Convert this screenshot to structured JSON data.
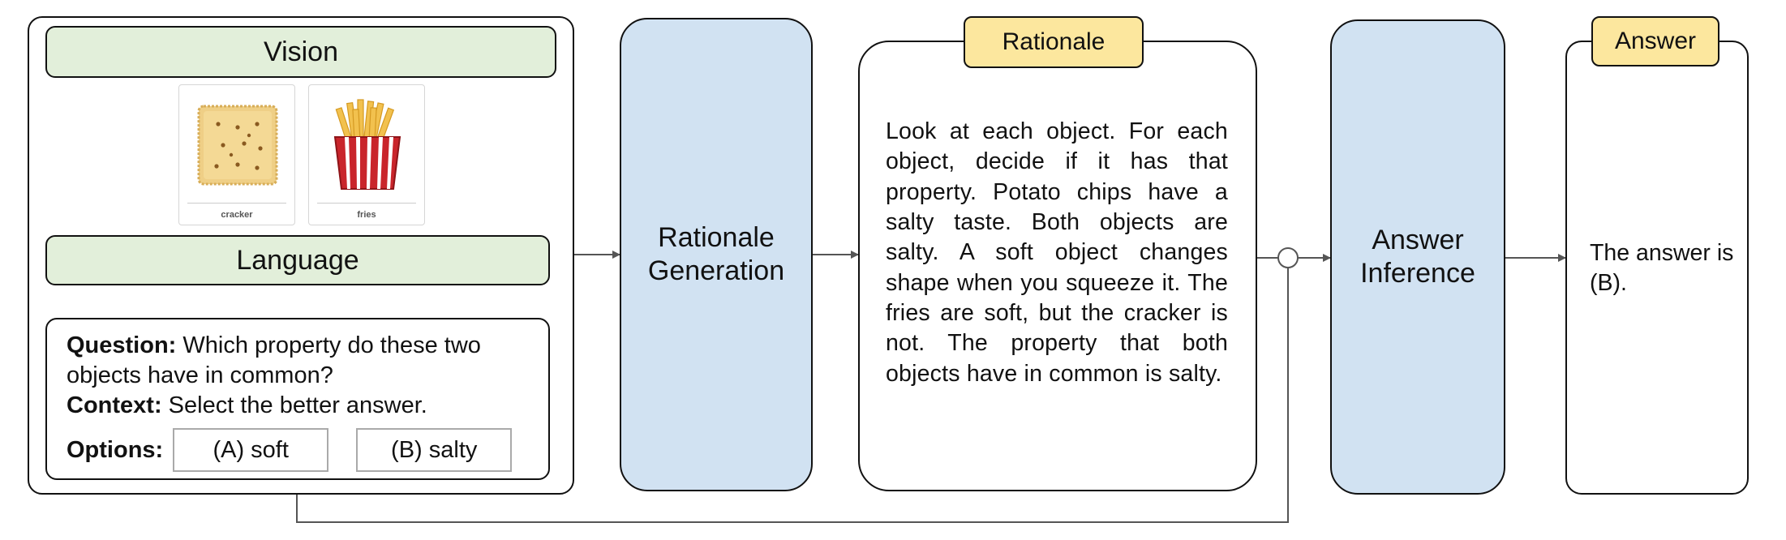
{
  "input": {
    "vision_label": "Vision",
    "language_label": "Language",
    "images": [
      {
        "label": "cracker",
        "icon": "cracker-icon"
      },
      {
        "label": "fries",
        "icon": "fries-icon"
      }
    ],
    "question_label": "Question:",
    "question_text": "Which property do these two objects have in common?",
    "context_label": "Context:",
    "context_text": "Select the better answer.",
    "options_label": "Options:",
    "options": [
      "(A) soft",
      "(B) salty"
    ]
  },
  "stages": {
    "rationale_generation": "Rationale Generation",
    "answer_inference": "Answer Inference"
  },
  "rationale": {
    "tag": "Rationale",
    "text": "Look at each object. For each object, decide if it has that property. Potato chips have a salty taste. Both objects are salty. A soft object changes shape when you squeeze it. The fries are soft, but the cracker is not. The property that both objects have in common is salty."
  },
  "answer": {
    "tag": "Answer",
    "text": "The answer is (B)."
  },
  "colors": {
    "green_box": "#e2efda",
    "blue_box": "#d1e2f2",
    "yellow_tag": "#fce79e",
    "border": "#111111"
  }
}
